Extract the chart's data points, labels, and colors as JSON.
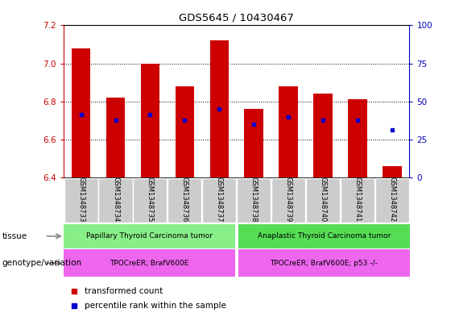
{
  "title": "GDS5645 / 10430467",
  "samples": [
    "GSM1348733",
    "GSM1348734",
    "GSM1348735",
    "GSM1348736",
    "GSM1348737",
    "GSM1348738",
    "GSM1348739",
    "GSM1348740",
    "GSM1348741",
    "GSM1348742"
  ],
  "red_values": [
    7.08,
    6.82,
    7.0,
    6.88,
    7.12,
    6.76,
    6.88,
    6.84,
    6.81,
    6.46
  ],
  "blue_values": [
    6.73,
    6.7,
    6.73,
    6.7,
    6.76,
    6.68,
    6.72,
    6.7,
    6.7,
    6.65
  ],
  "ylim_left": [
    6.4,
    7.2
  ],
  "ylim_right": [
    0,
    100
  ],
  "yticks_left": [
    6.4,
    6.6,
    6.8,
    7.0,
    7.2
  ],
  "yticks_right": [
    0,
    25,
    50,
    75,
    100
  ],
  "tissue_group1": "Papillary Thyroid Carcinoma tumor",
  "tissue_group2": "Anaplastic Thyroid Carcinoma tumor",
  "genotype_group1": "TPOCreER; BrafV600E",
  "genotype_group2": "TPOCreER; BrafV600E; p53 -/-",
  "tissue_label": "tissue",
  "genotype_label": "genotype/variation",
  "legend_red": "transformed count",
  "legend_blue": "percentile rank within the sample",
  "group1_count": 5,
  "group2_count": 5,
  "bar_color": "#cc0000",
  "blue_color": "#0000cc",
  "tissue1_color": "#88ee88",
  "tissue2_color": "#55dd55",
  "genotype_color": "#ee66ee",
  "tick_label_bg": "#cccccc",
  "axis_left_color": "#cc0000",
  "axis_right_color": "#0000bb",
  "bar_width": 0.55
}
